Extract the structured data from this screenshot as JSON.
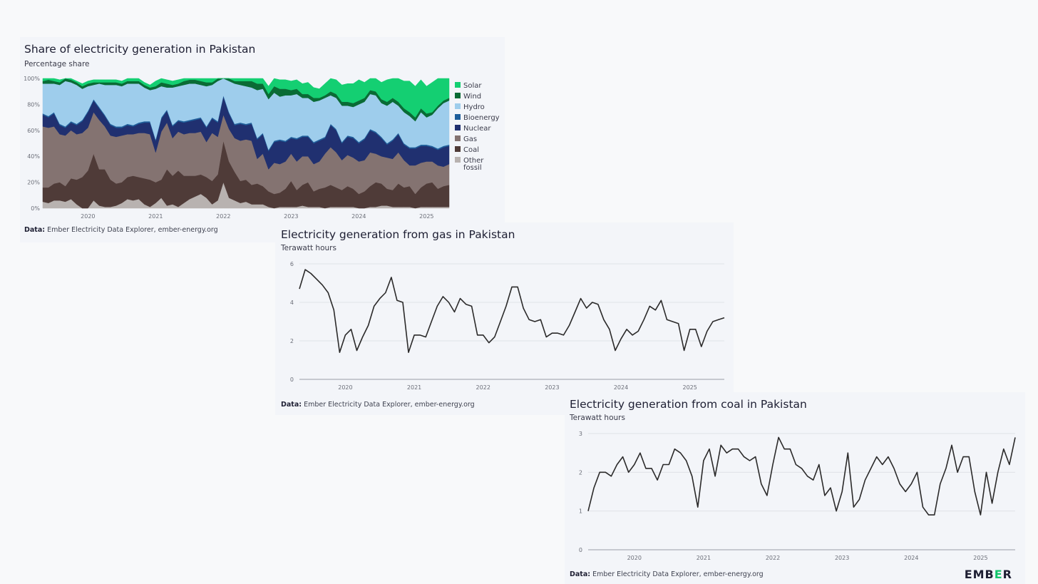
{
  "charts": {
    "share": {
      "title": "Share of electricity generation in Pakistan",
      "subtitle": "Percentage share",
      "source_label": "Data:",
      "source_text": "Ember Electricity Data Explorer, ember-energy.org"
    },
    "gas": {
      "title": "Electricity generation from gas in Pakistan",
      "subtitle": "Terawatt hours",
      "source_label": "Data:",
      "source_text": "Ember Electricity Data Explorer, ember-energy.org"
    },
    "coal": {
      "title": "Electricity generation from coal in Pakistan",
      "subtitle": "Terawatt hours",
      "source_label": "Data:",
      "source_text": "Ember Electricity Data Explorer, ember-energy.org"
    }
  },
  "brand": {
    "logo_pre": "EMB",
    "logo_accent": "E",
    "logo_post": "R",
    "accent_color": "#12c46a"
  },
  "chart_data": [
    {
      "type": "area",
      "stacked": true,
      "title": "Share of electricity generation in Pakistan",
      "subtitle": "Percentage share",
      "ylim": [
        0,
        100
      ],
      "y_ticks": [
        "0%",
        "20%",
        "40%",
        "60%",
        "80%",
        "100%"
      ],
      "x_tick_labels": [
        "2020",
        "2021",
        "2022",
        "2023",
        "2024",
        "2025"
      ],
      "x_start": "2019-05",
      "legend_position": "right",
      "series": [
        {
          "name": "Other fossil",
          "color": "#b8b2b0",
          "values": [
            5,
            4,
            6,
            6,
            5,
            7,
            3,
            0,
            0,
            6,
            2,
            1,
            1,
            2,
            4,
            7,
            6,
            7,
            3,
            1,
            4,
            8,
            2,
            3,
            1,
            4,
            7,
            9,
            11,
            8,
            3,
            6,
            20,
            8,
            6,
            4,
            5,
            3,
            3,
            3,
            1,
            0,
            1,
            1,
            1,
            1,
            2,
            1,
            1,
            1,
            0,
            1,
            1,
            1,
            1,
            1,
            0,
            0,
            1,
            1,
            2,
            2,
            1,
            1,
            1,
            1,
            0,
            1,
            1,
            1,
            1,
            1,
            1
          ]
        },
        {
          "name": "Coal",
          "color": "#4f3b38",
          "values": [
            11,
            12,
            13,
            14,
            12,
            16,
            19,
            24,
            29,
            36,
            28,
            29,
            21,
            17,
            16,
            17,
            19,
            17,
            20,
            21,
            16,
            14,
            28,
            22,
            28,
            21,
            18,
            16,
            15,
            16,
            18,
            20,
            32,
            28,
            22,
            17,
            17,
            15,
            16,
            14,
            12,
            11,
            11,
            14,
            20,
            13,
            16,
            19,
            12,
            14,
            16,
            17,
            15,
            13,
            16,
            14,
            11,
            13,
            16,
            19,
            17,
            13,
            13,
            18,
            15,
            16,
            11,
            15,
            18,
            19,
            14,
            16,
            17
          ]
        },
        {
          "name": "Gas",
          "color": "#847371",
          "values": [
            47,
            46,
            44,
            37,
            39,
            37,
            35,
            34,
            33,
            32,
            38,
            33,
            34,
            36,
            36,
            33,
            32,
            34,
            35,
            35,
            23,
            37,
            36,
            29,
            30,
            32,
            33,
            33,
            33,
            27,
            37,
            29,
            20,
            25,
            26,
            31,
            31,
            34,
            19,
            25,
            17,
            24,
            22,
            21,
            21,
            22,
            22,
            20,
            21,
            21,
            26,
            29,
            27,
            23,
            24,
            24,
            25,
            24,
            26,
            22,
            21,
            24,
            24,
            24,
            21,
            16,
            22,
            19,
            17,
            16,
            18,
            15,
            16
          ]
        },
        {
          "name": "Nuclear",
          "color": "#203070",
          "values": [
            9,
            8,
            10,
            7,
            6,
            6,
            7,
            9,
            12,
            9,
            9,
            8,
            8,
            7,
            6,
            7,
            6,
            7,
            8,
            9,
            9,
            10,
            9,
            9,
            8,
            9,
            9,
            10,
            10,
            11,
            11,
            11,
            14,
            12,
            10,
            13,
            11,
            13,
            15,
            15,
            14,
            16,
            18,
            15,
            12,
            17,
            15,
            15,
            16,
            16,
            12,
            17,
            17,
            13,
            14,
            15,
            14,
            16,
            17,
            16,
            14,
            10,
            14,
            14,
            12,
            13,
            13,
            13,
            12,
            11,
            12,
            15,
            14
          ]
        },
        {
          "name": "Bioenergy",
          "color": "#1f5e9a",
          "values": [
            1,
            1,
            1,
            1,
            1,
            1,
            1,
            1,
            1,
            1,
            1,
            1,
            1,
            1,
            1,
            1,
            1,
            1,
            1,
            1,
            1,
            1,
            1,
            1,
            1,
            1,
            1,
            1,
            1,
            1,
            1,
            1,
            1,
            1,
            1,
            1,
            1,
            1,
            1,
            1,
            1,
            1,
            1,
            1,
            1,
            1,
            1,
            1,
            1,
            1,
            1,
            1,
            1,
            1,
            1,
            1,
            1,
            1,
            1,
            1,
            1,
            1,
            1,
            1,
            1,
            1,
            1,
            1,
            1,
            1,
            1,
            1,
            1
          ]
        },
        {
          "name": "Hydro",
          "color": "#9ecdec",
          "values": [
            23,
            25,
            22,
            30,
            35,
            30,
            30,
            24,
            19,
            11,
            18,
            23,
            30,
            32,
            31,
            31,
            32,
            30,
            26,
            24,
            39,
            24,
            17,
            29,
            26,
            28,
            28,
            27,
            25,
            31,
            25,
            31,
            18,
            24,
            31,
            29,
            29,
            27,
            37,
            34,
            39,
            37,
            33,
            35,
            32,
            34,
            29,
            29,
            31,
            30,
            30,
            22,
            24,
            28,
            23,
            23,
            29,
            28,
            27,
            28,
            26,
            29,
            29,
            21,
            24,
            24,
            20,
            25,
            21,
            24,
            31,
            33,
            34
          ]
        },
        {
          "name": "Wind",
          "color": "#0a6b35",
          "values": [
            2,
            3,
            2,
            2,
            2,
            2,
            2,
            2,
            2,
            2,
            1,
            2,
            2,
            2,
            2,
            2,
            2,
            2,
            2,
            2,
            2,
            3,
            3,
            2,
            2,
            3,
            3,
            3,
            3,
            3,
            2,
            2,
            2,
            2,
            2,
            3,
            4,
            5,
            5,
            4,
            4,
            5,
            6,
            5,
            4,
            4,
            3,
            3,
            3,
            2,
            2,
            3,
            3,
            3,
            3,
            3,
            3,
            3,
            3,
            3,
            3,
            3,
            3,
            3,
            3,
            3,
            3,
            3,
            3,
            2,
            2,
            2,
            2
          ]
        },
        {
          "name": "Solar",
          "color": "#14cf72",
          "values": [
            2,
            2,
            2,
            2,
            1,
            1,
            1,
            2,
            2,
            2,
            2,
            2,
            2,
            2,
            2,
            2,
            2,
            2,
            2,
            2,
            4,
            4,
            3,
            3,
            3,
            3,
            3,
            3,
            3,
            3,
            3,
            3,
            2,
            3,
            4,
            4,
            5,
            5,
            5,
            5,
            6,
            7,
            7,
            7,
            7,
            7,
            8,
            9,
            8,
            7,
            9,
            10,
            11,
            13,
            14,
            15,
            16,
            12,
            11,
            13,
            13,
            17,
            18,
            20,
            21,
            24,
            24,
            22,
            21,
            23,
            24,
            18,
            16
          ]
        }
      ]
    },
    {
      "type": "line",
      "title": "Electricity generation from gas in Pakistan",
      "subtitle": "Terawatt hours",
      "ylim": [
        0,
        6
      ],
      "y_ticks": [
        0,
        2,
        4,
        6
      ],
      "x_tick_labels": [
        "2020",
        "2021",
        "2022",
        "2023",
        "2024",
        "2025"
      ],
      "x_start": "2019-05",
      "series": [
        {
          "name": "Gas",
          "color": "#2b2a2a",
          "values": [
            4.7,
            5.7,
            5.5,
            5.2,
            4.9,
            4.5,
            3.6,
            1.4,
            2.3,
            2.6,
            1.5,
            2.2,
            2.8,
            3.8,
            4.2,
            4.5,
            5.3,
            4.1,
            4.0,
            1.4,
            2.3,
            2.3,
            2.2,
            3.0,
            3.8,
            4.3,
            4.0,
            3.5,
            4.2,
            3.9,
            3.8,
            2.3,
            2.3,
            1.9,
            2.2,
            3.0,
            3.8,
            4.8,
            4.8,
            3.7,
            3.1,
            3.0,
            3.1,
            2.2,
            2.4,
            2.4,
            2.3,
            2.8,
            3.5,
            4.2,
            3.7,
            4.0,
            3.9,
            3.1,
            2.6,
            1.5,
            2.1,
            2.6,
            2.3,
            2.5,
            3.1,
            3.8,
            3.6,
            4.1,
            3.1,
            3.0,
            2.9,
            1.5,
            2.6,
            2.6,
            1.7,
            2.5,
            3.0,
            3.1,
            3.2
          ]
        }
      ]
    },
    {
      "type": "line",
      "title": "Electricity generation from coal in Pakistan",
      "subtitle": "Terawatt hours",
      "ylim": [
        0,
        3
      ],
      "y_ticks": [
        0,
        1,
        2,
        3
      ],
      "x_tick_labels": [
        "2020",
        "2021",
        "2022",
        "2023",
        "2024",
        "2025"
      ],
      "x_start": "2019-05",
      "series": [
        {
          "name": "Coal",
          "color": "#2b2a2a",
          "values": [
            1.0,
            1.6,
            2.0,
            2.0,
            1.9,
            2.2,
            2.4,
            2.0,
            2.2,
            2.5,
            2.1,
            2.1,
            1.8,
            2.2,
            2.2,
            2.6,
            2.5,
            2.3,
            1.9,
            1.1,
            2.3,
            2.6,
            1.9,
            2.7,
            2.5,
            2.6,
            2.6,
            2.4,
            2.3,
            2.4,
            1.7,
            1.4,
            2.2,
            2.9,
            2.6,
            2.6,
            2.2,
            2.1,
            1.9,
            1.8,
            2.2,
            1.4,
            1.6,
            1.0,
            1.5,
            2.5,
            1.1,
            1.3,
            1.8,
            2.1,
            2.4,
            2.2,
            2.4,
            2.1,
            1.7,
            1.5,
            1.7,
            2.0,
            1.1,
            0.9,
            0.9,
            1.7,
            2.1,
            2.7,
            2.0,
            2.4,
            2.4,
            1.5,
            0.9,
            2.0,
            1.2,
            2.0,
            2.6,
            2.2,
            2.9
          ]
        }
      ]
    }
  ]
}
